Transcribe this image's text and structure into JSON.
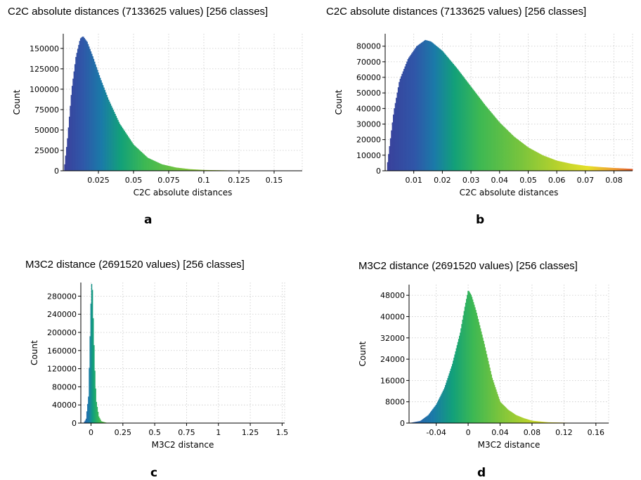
{
  "chart_data": [
    {
      "id": "a",
      "type": "bar",
      "panel_label": "a",
      "title": "C2C absolute distances (7133625 values)  [256 classes]",
      "xlabel": "C2C absolute distances",
      "ylabel": "Count",
      "xlim": [
        0.0,
        0.17
      ],
      "ylim": [
        0,
        168000
      ],
      "xticks": [
        0.025,
        0.05,
        0.075,
        0.1,
        0.125,
        0.15
      ],
      "xtick_labels": [
        "0.025",
        "0.05",
        "0.075",
        "0.1",
        "0.125",
        "0.15"
      ],
      "yticks": [
        0,
        25000,
        50000,
        75000,
        100000,
        125000,
        150000
      ],
      "ytick_labels": [
        "0",
        "25000",
        "50000",
        "75000",
        "100000",
        "125000",
        "150000"
      ],
      "grid": true,
      "distribution_points": [
        [
          0.0005,
          0
        ],
        [
          0.003,
          40000
        ],
        [
          0.006,
          100000
        ],
        [
          0.009,
          140000
        ],
        [
          0.012,
          162000
        ],
        [
          0.014,
          165000
        ],
        [
          0.017,
          158000
        ],
        [
          0.021,
          140000
        ],
        [
          0.026,
          115000
        ],
        [
          0.032,
          88000
        ],
        [
          0.04,
          58000
        ],
        [
          0.05,
          32000
        ],
        [
          0.06,
          16000
        ],
        [
          0.07,
          8000
        ],
        [
          0.08,
          4000
        ],
        [
          0.09,
          2000
        ],
        [
          0.1,
          1000
        ],
        [
          0.12,
          400
        ],
        [
          0.15,
          100
        ],
        [
          0.17,
          0
        ]
      ],
      "color_stops": [
        [
          0,
          "#3a3f9a"
        ],
        [
          0.08,
          "#2f56a8"
        ],
        [
          0.16,
          "#1a7aa8"
        ],
        [
          0.24,
          "#12a079"
        ],
        [
          0.34,
          "#3cb853"
        ],
        [
          0.5,
          "#79c43c"
        ],
        [
          0.7,
          "#b8d22c"
        ],
        [
          1,
          "#d9d92c"
        ]
      ]
    },
    {
      "id": "b",
      "type": "bar",
      "panel_label": "b",
      "title": "C2C absolute distances (7133625 values)  [256 classes]",
      "xlabel": "C2C absolute distances",
      "ylabel": "Count",
      "xlim": [
        0.0,
        0.0865
      ],
      "ylim": [
        0,
        88000
      ],
      "xticks": [
        0.01,
        0.02,
        0.03,
        0.04,
        0.05,
        0.06,
        0.07,
        0.08
      ],
      "xtick_labels": [
        "0.01",
        "0.02",
        "0.03",
        "0.04",
        "0.05",
        "0.06",
        "0.07",
        "0.08"
      ],
      "yticks": [
        0,
        10000,
        20000,
        30000,
        40000,
        50000,
        60000,
        70000,
        80000
      ],
      "ytick_labels": [
        "0",
        "10000",
        "20000",
        "30000",
        "40000",
        "50000",
        "60000",
        "70000",
        "80000"
      ],
      "grid": true,
      "distribution_points": [
        [
          0.0005,
          0
        ],
        [
          0.001,
          8000
        ],
        [
          0.003,
          38000
        ],
        [
          0.005,
          58000
        ],
        [
          0.008,
          72000
        ],
        [
          0.011,
          80000
        ],
        [
          0.014,
          84000
        ],
        [
          0.016,
          83000
        ],
        [
          0.02,
          77000
        ],
        [
          0.025,
          66000
        ],
        [
          0.03,
          54000
        ],
        [
          0.035,
          42000
        ],
        [
          0.04,
          31000
        ],
        [
          0.045,
          22000
        ],
        [
          0.05,
          15000
        ],
        [
          0.055,
          10000
        ],
        [
          0.06,
          6500
        ],
        [
          0.065,
          4500
        ],
        [
          0.07,
          3200
        ],
        [
          0.075,
          2400
        ],
        [
          0.08,
          1800
        ],
        [
          0.0865,
          1200
        ]
      ],
      "color_stops": [
        [
          0,
          "#3a3f9a"
        ],
        [
          0.12,
          "#2f56a8"
        ],
        [
          0.2,
          "#1a7aa8"
        ],
        [
          0.28,
          "#12a079"
        ],
        [
          0.38,
          "#3cb853"
        ],
        [
          0.55,
          "#79c43c"
        ],
        [
          0.7,
          "#b8d22c"
        ],
        [
          0.82,
          "#e6e02a"
        ],
        [
          0.92,
          "#f0a030"
        ],
        [
          1,
          "#e05a2a"
        ]
      ]
    },
    {
      "id": "c",
      "type": "bar",
      "panel_label": "c",
      "title": "M3C2 distance (2691520 values)  [256 classes]",
      "xlabel": "M3C2 distance",
      "ylabel": "Count",
      "xlim": [
        -0.08,
        1.52
      ],
      "ylim": [
        0,
        310000
      ],
      "xticks": [
        0,
        0.25,
        0.5,
        0.75,
        1,
        1.25,
        1.5
      ],
      "xtick_labels": [
        "0",
        "0.25",
        "0.5",
        "0.75",
        "1",
        "1.25",
        "1.5"
      ],
      "yticks": [
        0,
        40000,
        80000,
        120000,
        160000,
        200000,
        240000,
        280000
      ],
      "ytick_labels": [
        "0",
        "40000",
        "80000",
        "120000",
        "160000",
        "200000",
        "240000",
        "280000"
      ],
      "grid": true,
      "distribution_points": [
        [
          -0.06,
          0
        ],
        [
          -0.04,
          8000
        ],
        [
          -0.02,
          60000
        ],
        [
          -0.01,
          170000
        ],
        [
          0.0,
          285000
        ],
        [
          0.005,
          310000
        ],
        [
          0.01,
          300000
        ],
        [
          0.02,
          200000
        ],
        [
          0.03,
          110000
        ],
        [
          0.04,
          50000
        ],
        [
          0.06,
          15000
        ],
        [
          0.08,
          4000
        ],
        [
          0.12,
          800
        ],
        [
          0.2,
          0
        ],
        [
          1.52,
          0
        ]
      ],
      "color_stops": [
        [
          0,
          "#2f56a8"
        ],
        [
          0.04,
          "#1a7aa8"
        ],
        [
          0.06,
          "#12a079"
        ],
        [
          0.09,
          "#3cb853"
        ],
        [
          0.14,
          "#79c43c"
        ],
        [
          1,
          "#b8d22c"
        ]
      ]
    },
    {
      "id": "d",
      "type": "bar",
      "panel_label": "d",
      "title": "M3C2 distance (2691520 values)  [256 classes]",
      "xlabel": "M3C2 distance",
      "ylabel": "Count",
      "xlim": [
        -0.074,
        0.176
      ],
      "ylim": [
        0,
        52000
      ],
      "xticks": [
        -0.04,
        0,
        0.04,
        0.08,
        0.12,
        0.16
      ],
      "xtick_labels": [
        "-0.04",
        "0",
        "0.04",
        "0.08",
        "0.12",
        "0.16"
      ],
      "yticks": [
        0,
        8000,
        16000,
        24000,
        32000,
        40000,
        48000
      ],
      "ytick_labels": [
        "0",
        "8000",
        "16000",
        "24000",
        "32000",
        "40000",
        "48000"
      ],
      "grid": true,
      "distribution_points": [
        [
          -0.074,
          0
        ],
        [
          -0.06,
          800
        ],
        [
          -0.05,
          3000
        ],
        [
          -0.04,
          7000
        ],
        [
          -0.03,
          13000
        ],
        [
          -0.02,
          22000
        ],
        [
          -0.01,
          34000
        ],
        [
          -0.004,
          44000
        ],
        [
          0.0,
          50000
        ],
        [
          0.004,
          48000
        ],
        [
          0.01,
          42000
        ],
        [
          0.02,
          30000
        ],
        [
          0.03,
          17000
        ],
        [
          0.04,
          8000
        ],
        [
          0.05,
          5000
        ],
        [
          0.06,
          3000
        ],
        [
          0.07,
          1800
        ],
        [
          0.08,
          900
        ],
        [
          0.1,
          300
        ],
        [
          0.13,
          100
        ],
        [
          0.176,
          0
        ]
      ],
      "color_stops": [
        [
          0,
          "#2f56a8"
        ],
        [
          0.12,
          "#1a7aa8"
        ],
        [
          0.22,
          "#12a079"
        ],
        [
          0.32,
          "#3cb853"
        ],
        [
          0.45,
          "#79c43c"
        ],
        [
          0.6,
          "#b8d22c"
        ],
        [
          0.72,
          "#e6e02a"
        ],
        [
          0.86,
          "#f0a030"
        ],
        [
          1,
          "#e05a2a"
        ]
      ]
    }
  ]
}
